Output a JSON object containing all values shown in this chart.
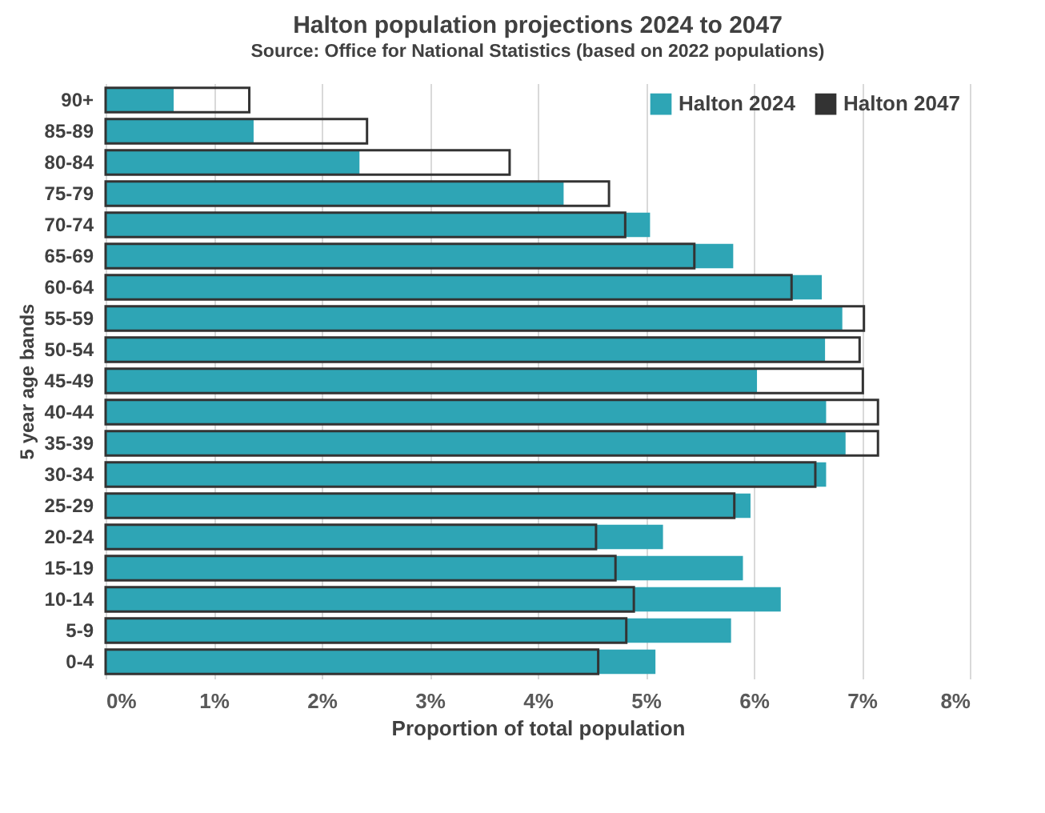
{
  "chart_data": {
    "type": "bar",
    "orientation": "horizontal",
    "title": "Halton population projections 2024 to 2047",
    "subtitle": "Source: Office for National Statistics (based on 2022 populations)",
    "xlabel": "Proportion of total population",
    "ylabel": "5 year age bands",
    "categories": [
      "90+",
      "85-89",
      "80-84",
      "75-79",
      "70-74",
      "65-69",
      "60-64",
      "55-59",
      "50-54",
      "45-49",
      "40-44",
      "35-39",
      "30-34",
      "25-29",
      "20-24",
      "15-19",
      "10-14",
      "5-9",
      "0-4"
    ],
    "series": [
      {
        "name": "Halton 2024",
        "color": "#2ea5b5",
        "values": [
          0.63,
          1.37,
          2.35,
          4.24,
          5.04,
          5.81,
          6.63,
          6.82,
          6.66,
          6.03,
          6.67,
          6.85,
          6.67,
          5.97,
          5.16,
          5.9,
          6.25,
          5.79,
          5.09
        ]
      },
      {
        "name": "Halton 2047",
        "color": "#333333",
        "values": [
          1.33,
          2.42,
          3.74,
          4.66,
          4.81,
          5.45,
          6.35,
          7.02,
          6.98,
          7.01,
          7.15,
          7.15,
          6.57,
          5.82,
          4.54,
          4.72,
          4.89,
          4.82,
          4.56
        ]
      }
    ],
    "xlim": [
      0,
      8
    ],
    "xticks": [
      {
        "value": 0,
        "label": "0%"
      },
      {
        "value": 1,
        "label": "1%"
      },
      {
        "value": 2,
        "label": "2%"
      },
      {
        "value": 3,
        "label": "3%"
      },
      {
        "value": 4,
        "label": "4%"
      },
      {
        "value": 5,
        "label": "5%"
      },
      {
        "value": 6,
        "label": "6%"
      },
      {
        "value": 7,
        "label": "7%"
      },
      {
        "value": 8,
        "label": "8%"
      }
    ],
    "grid": "x",
    "legend": "top right"
  }
}
